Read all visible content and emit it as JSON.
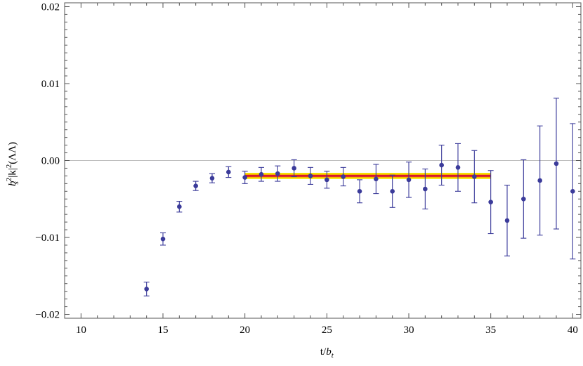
{
  "chart_data": {
    "type": "scatter",
    "title": "",
    "xlabel": "t/b_t",
    "ylabel": "b_s^2|k|^2(ΛΛ)",
    "xlim": [
      9,
      40.5
    ],
    "ylim": [
      -0.0205,
      0.0205
    ],
    "x_ticks": [
      10,
      15,
      20,
      25,
      30,
      35,
      40
    ],
    "x_tick_labels": [
      "10",
      "15",
      "20",
      "25",
      "30",
      "35",
      "40"
    ],
    "y_ticks": [
      -0.02,
      -0.01,
      0.0,
      0.01,
      0.02
    ],
    "y_tick_labels": [
      "−0.02",
      "−0.01",
      "0.00",
      "0.01",
      "0.02"
    ],
    "grid": false,
    "zero_line": true,
    "colors": {
      "points": "#3b3b9a",
      "zero_line": "#bdbdbd",
      "band_outer": "#f5ef00",
      "band_mid": "#f7b500",
      "band_inner": "#f06a25",
      "fit_line": "#d6122f",
      "frame": "#555555"
    },
    "points": [
      {
        "x": 14,
        "y": -0.0167,
        "err": 0.0009
      },
      {
        "x": 15,
        "y": -0.0102,
        "err": 0.0008
      },
      {
        "x": 16,
        "y": -0.006,
        "err": 0.0007
      },
      {
        "x": 17,
        "y": -0.0033,
        "err": 0.0006
      },
      {
        "x": 18,
        "y": -0.0023,
        "err": 0.0006
      },
      {
        "x": 19,
        "y": -0.0015,
        "err": 0.0007
      },
      {
        "x": 20,
        "y": -0.0022,
        "err": 0.0008
      },
      {
        "x": 21,
        "y": -0.0018,
        "err": 0.0009
      },
      {
        "x": 22,
        "y": -0.0017,
        "err": 0.001
      },
      {
        "x": 23,
        "y": -0.001,
        "err": 0.0011
      },
      {
        "x": 24,
        "y": -0.002,
        "err": 0.0011
      },
      {
        "x": 25,
        "y": -0.0025,
        "err": 0.0011
      },
      {
        "x": 26,
        "y": -0.0021,
        "err": 0.0012
      },
      {
        "x": 27,
        "y": -0.004,
        "err": 0.0015
      },
      {
        "x": 28,
        "y": -0.0024,
        "err": 0.0019
      },
      {
        "x": 29,
        "y": -0.004,
        "err": 0.0021
      },
      {
        "x": 30,
        "y": -0.0025,
        "err": 0.0023
      },
      {
        "x": 31,
        "y": -0.0037,
        "err": 0.0026
      },
      {
        "x": 32,
        "y": -0.0006,
        "err": 0.0026
      },
      {
        "x": 33,
        "y": -0.0009,
        "err": 0.0031
      },
      {
        "x": 34,
        "y": -0.0021,
        "err": 0.0034
      },
      {
        "x": 35,
        "y": -0.0054,
        "err": 0.0041
      },
      {
        "x": 36,
        "y": -0.0078,
        "err": 0.0046
      },
      {
        "x": 37,
        "y": -0.005,
        "err": 0.0051
      },
      {
        "x": 38,
        "y": -0.0026,
        "err": 0.0071
      },
      {
        "x": 39,
        "y": -0.0004,
        "err": 0.0085
      },
      {
        "x": 40,
        "y": -0.004,
        "err": 0.0088
      }
    ],
    "fit": {
      "x_start": 20,
      "x_end": 35,
      "value": -0.002,
      "bands": [
        0.0004,
        0.00027,
        0.00014
      ]
    }
  }
}
